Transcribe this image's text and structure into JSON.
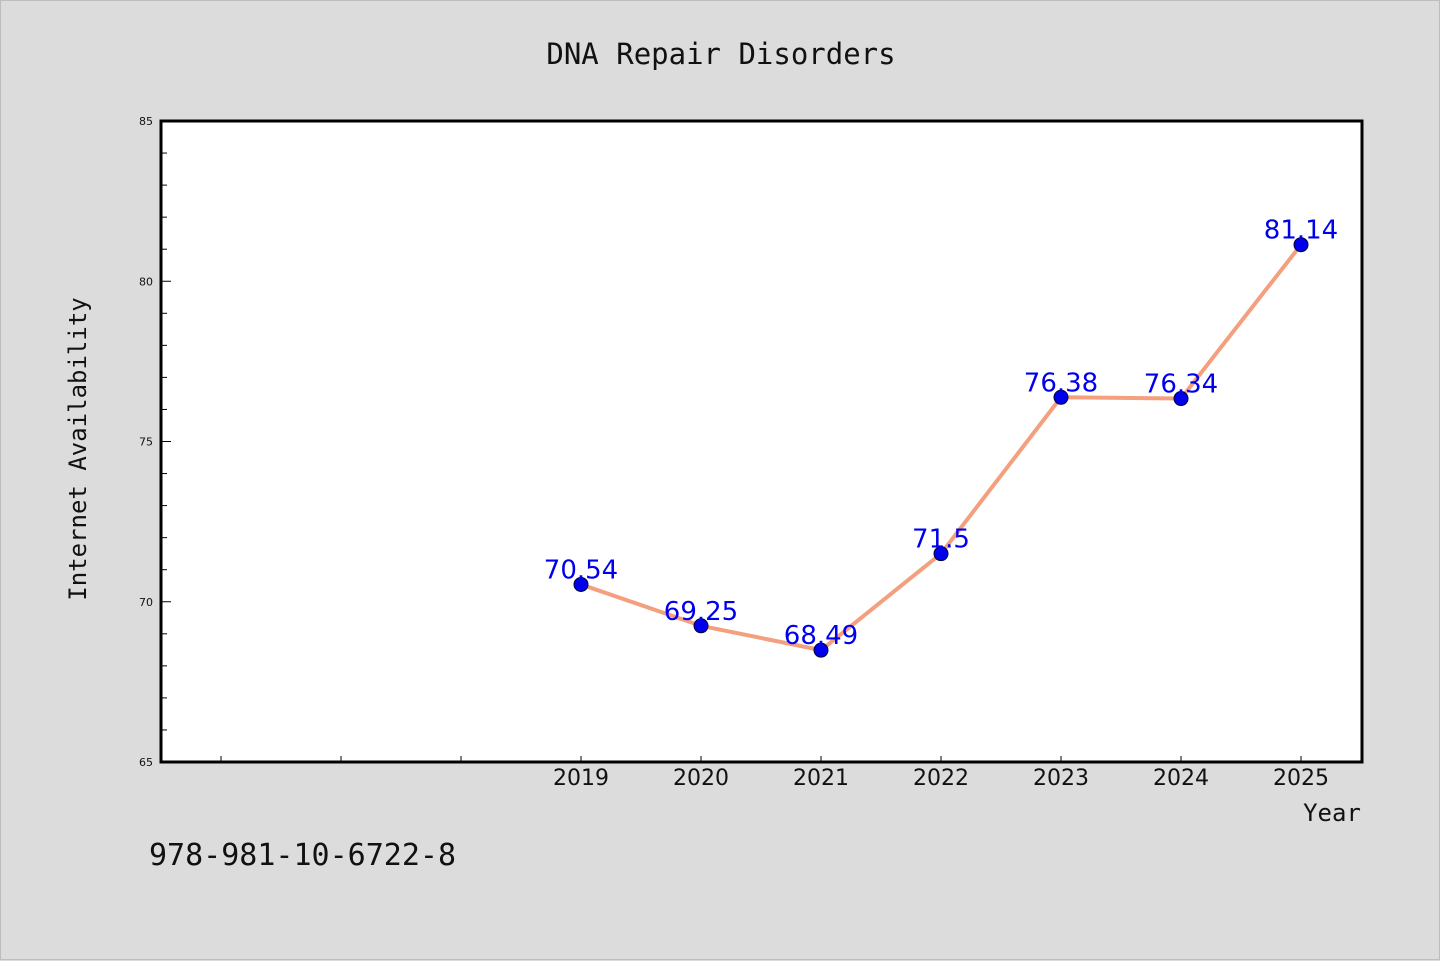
{
  "chart_data": {
    "type": "line",
    "title": "DNA Repair Disorders",
    "xlabel": "Year",
    "ylabel": "Internet Availability",
    "categories": [
      "2019",
      "2020",
      "2021",
      "2022",
      "2023",
      "2024",
      "2025"
    ],
    "series": [
      {
        "values": [
          70.54,
          69.25,
          68.49,
          71.5,
          76.38,
          76.34,
          81.14
        ],
        "labels": [
          "70.54",
          "69.25",
          "68.49",
          "71.5",
          "76.38",
          "76.34",
          "81.14"
        ],
        "line_color": "#f4a07e",
        "marker_color": "#0000ee"
      }
    ],
    "ylim": [
      65,
      85
    ],
    "yticks": [
      "65",
      "70",
      "75",
      "80",
      "85"
    ],
    "grid": false,
    "legend": "none"
  },
  "footnote": "978-981-10-6722-8",
  "colors": {
    "background": "#dcdcdc",
    "plot_background": "#ffffff",
    "label_color": "#0000ee"
  }
}
